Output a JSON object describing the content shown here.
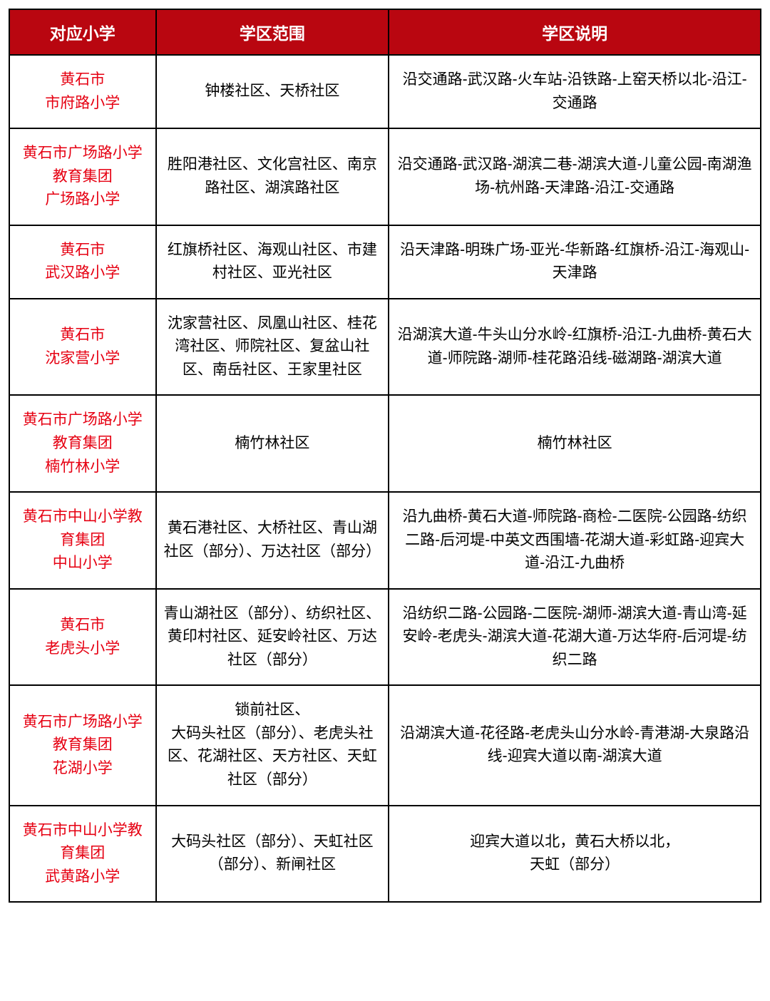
{
  "table": {
    "header_bg": "#b90610",
    "header_text_color": "#ffffff",
    "border_color": "#000000",
    "school_name_color": "#e60012",
    "cell_text_color": "#000000",
    "header_fontsize": 23,
    "cell_fontsize": 21,
    "columns": [
      {
        "label": "对应小学",
        "width": "19.5%"
      },
      {
        "label": "学区范围",
        "width": "31%"
      },
      {
        "label": "学区说明",
        "width": "49.5%"
      }
    ],
    "rows": [
      {
        "school": "黄石市\n市府路小学",
        "area": "钟楼社区、天桥社区",
        "desc": "沿交通路-武汉路-火车站-沿铁路-上窑天桥以北-沿江-交通路"
      },
      {
        "school": "黄石市广场路小学教育集团\n广场路小学",
        "area": "胜阳港社区、文化宫社区、南京路社区、湖滨路社区",
        "desc": "沿交通路-武汉路-湖滨二巷-湖滨大道-儿童公园-南湖渔场-杭州路-天津路-沿江-交通路"
      },
      {
        "school": "黄石市\n武汉路小学",
        "area": "红旗桥社区、海观山社区、市建村社区、亚光社区",
        "desc": "沿天津路-明珠广场-亚光-华新路-红旗桥-沿江-海观山-天津路"
      },
      {
        "school": "黄石市\n沈家营小学",
        "area": "沈家营社区、凤凰山社区、桂花湾社区、师院社区、复盆山社区、南岳社区、王家里社区",
        "desc": "沿湖滨大道-牛头山分水岭-红旗桥-沿江-九曲桥-黄石大道-师院路-湖师-桂花路沿线-磁湖路-湖滨大道"
      },
      {
        "school": "黄石市广场路小学教育集团\n楠竹林小学",
        "area": "楠竹林社区",
        "desc": "楠竹林社区"
      },
      {
        "school": "黄石市中山小学教育集团\n中山小学",
        "area": "黄石港社区、大桥社区、青山湖社区（部分）、万达社区（部分）",
        "desc": "沿九曲桥-黄石大道-师院路-商检-二医院-公园路-纺织二路-后河堤-中英文西围墙-花湖大道-彩虹路-迎宾大道-沿江-九曲桥"
      },
      {
        "school": "黄石市\n老虎头小学",
        "area": "青山湖社区（部分）、纺织社区、黄印村社区、延安岭社区、万达社区（部分）",
        "desc": "沿纺织二路-公园路-二医院-湖师-湖滨大道-青山湾-延安岭-老虎头-湖滨大道-花湖大道-万达华府-后河堤-纺织二路"
      },
      {
        "school": "黄石市广场路小学教育集团\n花湖小学",
        "area": "锁前社区、\n大码头社区（部分）、老虎头社区、花湖社区、天方社区、天虹社区（部分）",
        "desc": "沿湖滨大道-花径路-老虎头山分水岭-青港湖-大泉路沿线-迎宾大道以南-湖滨大道"
      },
      {
        "school": "黄石市中山小学教育集团\n武黄路小学",
        "area": "大码头社区（部分）、天虹社区（部分）、新闸社区",
        "desc": "迎宾大道以北，黄石大桥以北，\n天虹（部分）"
      }
    ]
  }
}
